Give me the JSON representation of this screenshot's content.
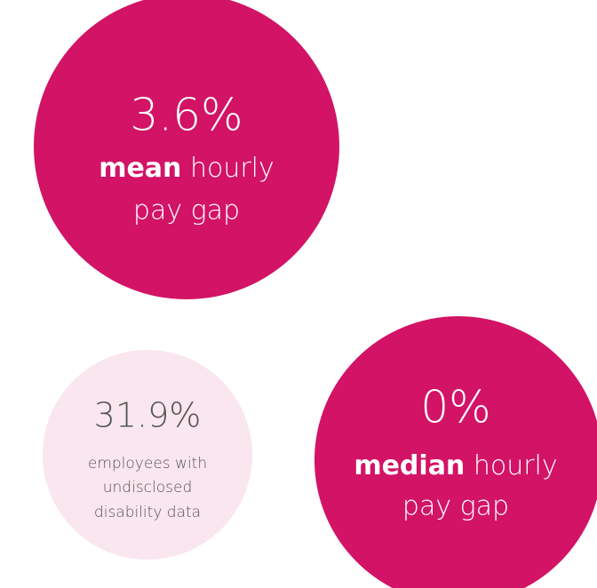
{
  "stats": [
    {
      "value": "3.6%",
      "emphasis": "mean",
      "label": "hourly",
      "label2": "pay gap"
    },
    {
      "value": "31.9%",
      "lines": [
        "employees with",
        "undisclosed",
        "disability data"
      ]
    },
    {
      "value": "0%",
      "emphasis": "median",
      "label": "hourly",
      "label2": "pay gap"
    }
  ]
}
